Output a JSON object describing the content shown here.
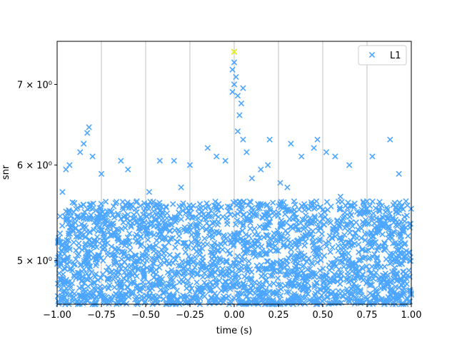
{
  "chart_data": {
    "type": "scatter",
    "title": "",
    "xlabel": "time (s)",
    "ylabel": "snr",
    "xlim": [
      -1.0,
      1.0
    ],
    "ylim": [
      4.6,
      7.6
    ],
    "yscale": "log",
    "xticks": [
      -1.0,
      -0.75,
      -0.5,
      -0.25,
      0.0,
      0.25,
      0.5,
      0.75,
      1.0
    ],
    "xtick_labels": [
      "−1.00",
      "−0.75",
      "−0.50",
      "−0.25",
      "0.00",
      "0.25",
      "0.50",
      "0.75",
      "1.00"
    ],
    "yticks": [
      5,
      6,
      7
    ],
    "ytick_labels": [
      "5 × 10⁰",
      "6 × 10⁰",
      "7 × 10⁰"
    ],
    "grid": "vertical",
    "legend": {
      "position": "top-right",
      "entries": [
        "L1"
      ]
    },
    "marker": "x",
    "series": [
      {
        "name": "L1",
        "color": "#4da6ff",
        "points": [
          [
            -0.82,
            6.45
          ],
          [
            -0.83,
            6.38
          ],
          [
            -0.85,
            6.25
          ],
          [
            -0.87,
            6.15
          ],
          [
            -0.8,
            6.1
          ],
          [
            -0.93,
            6.0
          ],
          [
            -0.95,
            5.95
          ],
          [
            -0.64,
            6.05
          ],
          [
            -0.6,
            5.95
          ],
          [
            -0.42,
            6.05
          ],
          [
            -0.34,
            6.05
          ],
          [
            -0.25,
            6.0
          ],
          [
            -0.15,
            6.2
          ],
          [
            -0.1,
            6.1
          ],
          [
            -0.05,
            6.05
          ],
          [
            0.0,
            7.45
          ],
          [
            0.0,
            7.3
          ],
          [
            -0.01,
            7.2
          ],
          [
            0.01,
            7.1
          ],
          [
            0.0,
            7.0
          ],
          [
            -0.01,
            6.9
          ],
          [
            0.02,
            6.85
          ],
          [
            0.05,
            6.95
          ],
          [
            0.04,
            6.75
          ],
          [
            0.03,
            6.6
          ],
          [
            0.02,
            6.4
          ],
          [
            0.05,
            6.3
          ],
          [
            0.07,
            6.15
          ],
          [
            0.1,
            5.85
          ],
          [
            0.15,
            5.95
          ],
          [
            0.19,
            6.0
          ],
          [
            0.2,
            6.3
          ],
          [
            0.26,
            5.8
          ],
          [
            0.32,
            6.25
          ],
          [
            0.38,
            6.1
          ],
          [
            0.45,
            6.2
          ],
          [
            0.47,
            6.3
          ],
          [
            0.52,
            6.15
          ],
          [
            0.57,
            6.1
          ],
          [
            0.65,
            6.0
          ],
          [
            0.78,
            6.1
          ],
          [
            0.88,
            6.3
          ],
          [
            0.93,
            5.9
          ],
          [
            0.97,
            5.6
          ],
          [
            -0.97,
            5.7
          ],
          [
            -0.75,
            5.9
          ],
          [
            -0.55,
            5.6
          ],
          [
            -0.48,
            5.7
          ],
          [
            -0.3,
            5.75
          ],
          [
            0.3,
            5.75
          ],
          [
            0.6,
            5.65
          ],
          [
            0.75,
            5.6
          ],
          [
            -0.2,
            4.75
          ],
          [
            -0.05,
            4.8
          ],
          [
            0.06,
            4.75
          ],
          [
            0.25,
            4.72
          ],
          [
            0.4,
            4.75
          ],
          [
            0.52,
            4.72
          ],
          [
            0.7,
            4.75
          ],
          [
            0.9,
            4.7
          ]
        ]
      },
      {
        "name": "",
        "color": "#f2f20d",
        "points": [
          [
            0.0,
            7.45
          ]
        ]
      }
    ],
    "dense_band": {
      "x_range": [
        -1.0,
        1.0
      ],
      "y_range": [
        4.6,
        5.6
      ]
    }
  }
}
